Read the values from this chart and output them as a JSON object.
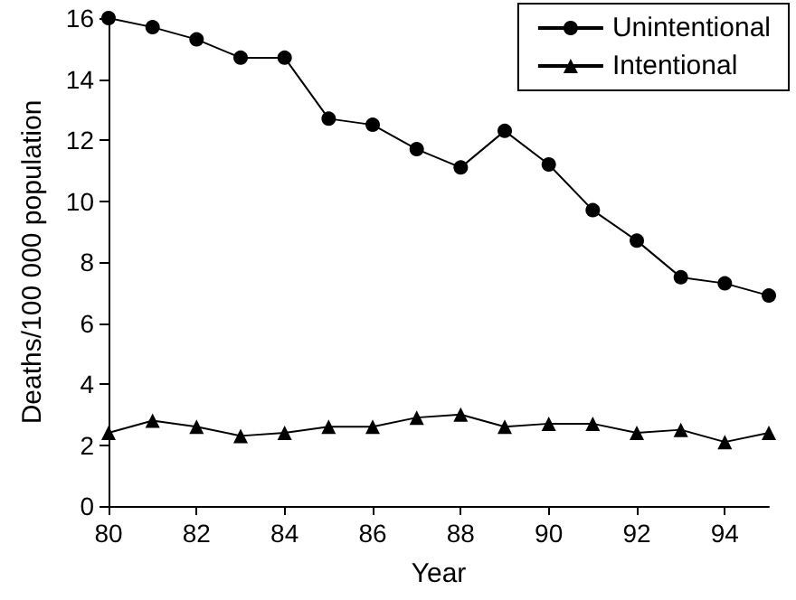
{
  "chart_data": {
    "type": "line",
    "xlabel": "Year",
    "ylabel": "Deaths/100 000 population",
    "x": [
      80,
      81,
      82,
      83,
      84,
      85,
      86,
      87,
      88,
      89,
      90,
      91,
      92,
      93,
      94,
      95
    ],
    "series": [
      {
        "name": "Unintentional",
        "color": "#000000",
        "marker": "circle",
        "values": [
          16.0,
          15.7,
          15.3,
          14.7,
          14.7,
          12.7,
          12.5,
          11.7,
          11.1,
          12.3,
          11.2,
          9.7,
          8.7,
          7.5,
          7.3,
          6.9
        ]
      },
      {
        "name": "Intentional",
        "color": "#000000",
        "marker": "triangle",
        "values": [
          2.4,
          2.8,
          2.6,
          2.3,
          2.4,
          2.6,
          2.6,
          2.9,
          3.0,
          2.6,
          2.7,
          2.7,
          2.4,
          2.5,
          2.1,
          2.4
        ]
      }
    ],
    "xlim": [
      80,
      95
    ],
    "xticks": [
      80,
      82,
      84,
      86,
      88,
      90,
      92,
      94
    ],
    "ylim": [
      0,
      16
    ],
    "yticks": [
      0,
      2,
      4,
      6,
      8,
      10,
      12,
      14,
      16
    ],
    "grid": false,
    "legend": "top right",
    "line_style": "solid"
  }
}
